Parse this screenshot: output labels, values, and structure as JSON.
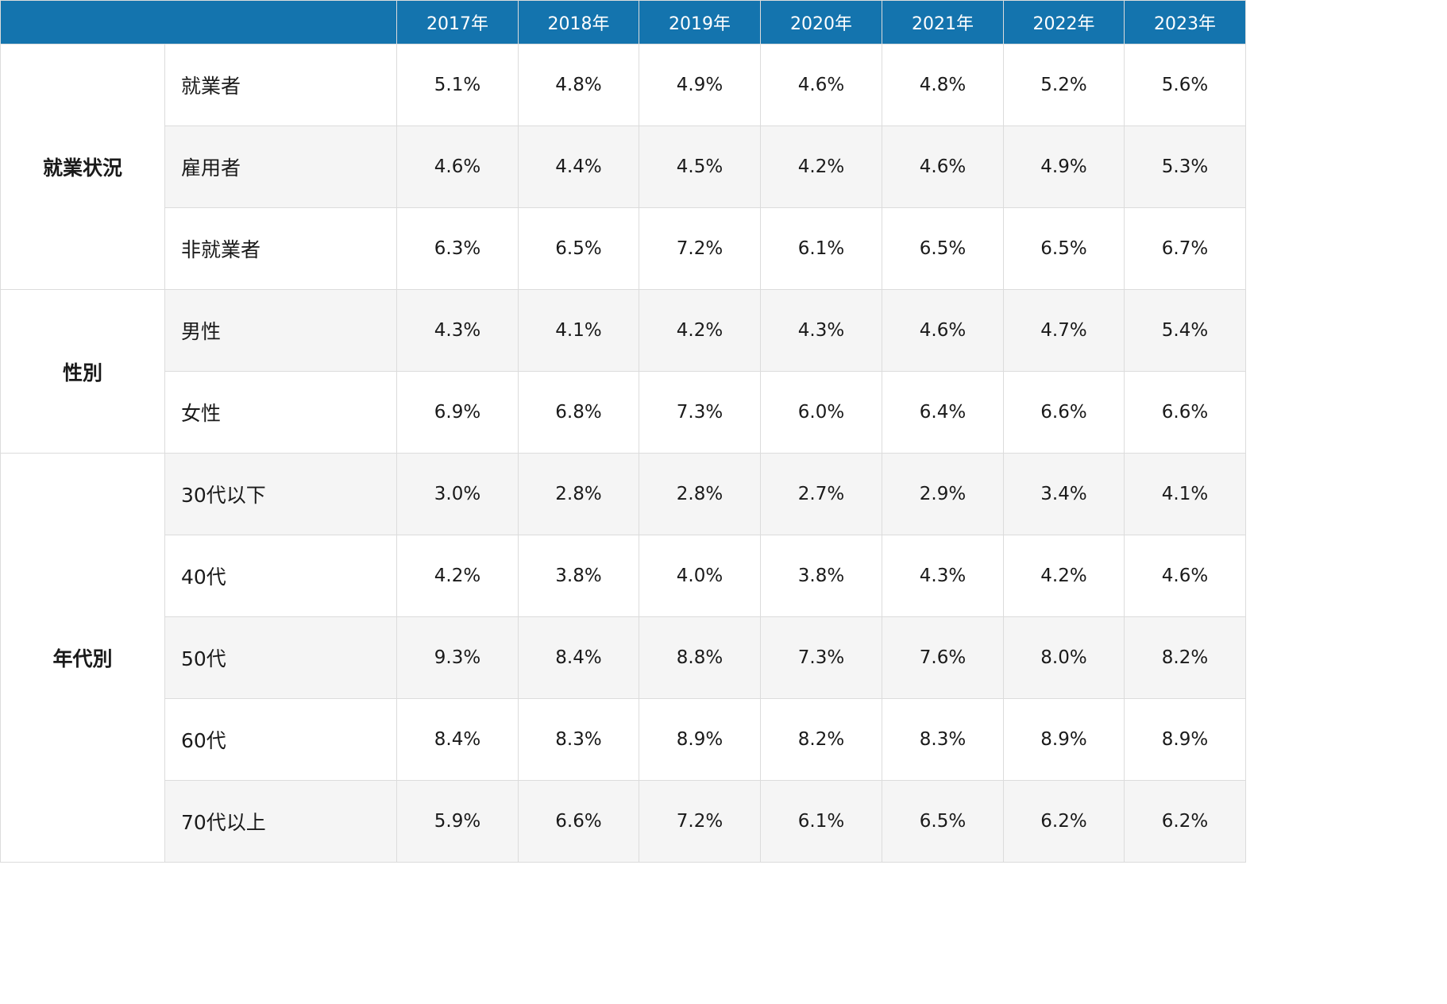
{
  "chart_data": {
    "type": "table",
    "columns": [
      "2017年",
      "2018年",
      "2019年",
      "2020年",
      "2021年",
      "2022年",
      "2023年"
    ],
    "groups": [
      {
        "name": "就業状況",
        "rows": [
          {
            "label": "就業者",
            "values": [
              "5.1%",
              "4.8%",
              "4.9%",
              "4.6%",
              "4.8%",
              "5.2%",
              "5.6%"
            ]
          },
          {
            "label": "雇用者",
            "values": [
              "4.6%",
              "4.4%",
              "4.5%",
              "4.2%",
              "4.6%",
              "4.9%",
              "5.3%"
            ]
          },
          {
            "label": "非就業者",
            "values": [
              "6.3%",
              "6.5%",
              "7.2%",
              "6.1%",
              "6.5%",
              "6.5%",
              "6.7%"
            ]
          }
        ]
      },
      {
        "name": "性別",
        "rows": [
          {
            "label": "男性",
            "values": [
              "4.3%",
              "4.1%",
              "4.2%",
              "4.3%",
              "4.6%",
              "4.7%",
              "5.4%"
            ]
          },
          {
            "label": "女性",
            "values": [
              "6.9%",
              "6.8%",
              "7.3%",
              "6.0%",
              "6.4%",
              "6.6%",
              "6.6%"
            ]
          }
        ]
      },
      {
        "name": "年代別",
        "rows": [
          {
            "label": "30代以下",
            "values": [
              "3.0%",
              "2.8%",
              "2.8%",
              "2.7%",
              "2.9%",
              "3.4%",
              "4.1%"
            ]
          },
          {
            "label": "40代",
            "values": [
              "4.2%",
              "3.8%",
              "4.0%",
              "3.8%",
              "4.3%",
              "4.2%",
              "4.6%"
            ]
          },
          {
            "label": "50代",
            "values": [
              "9.3%",
              "8.4%",
              "8.8%",
              "7.3%",
              "7.6%",
              "8.0%",
              "8.2%"
            ]
          },
          {
            "label": "60代",
            "values": [
              "8.4%",
              "8.3%",
              "8.9%",
              "8.2%",
              "8.3%",
              "8.9%",
              "8.9%"
            ]
          },
          {
            "label": "70代以上",
            "values": [
              "5.9%",
              "6.6%",
              "7.2%",
              "6.1%",
              "6.5%",
              "6.2%",
              "6.2%"
            ]
          }
        ]
      }
    ],
    "header_color": "#1474ae",
    "header_text_color": "#ffffff",
    "stripe_color": "#f5f5f5",
    "border_color": "#dcdcdc"
  }
}
